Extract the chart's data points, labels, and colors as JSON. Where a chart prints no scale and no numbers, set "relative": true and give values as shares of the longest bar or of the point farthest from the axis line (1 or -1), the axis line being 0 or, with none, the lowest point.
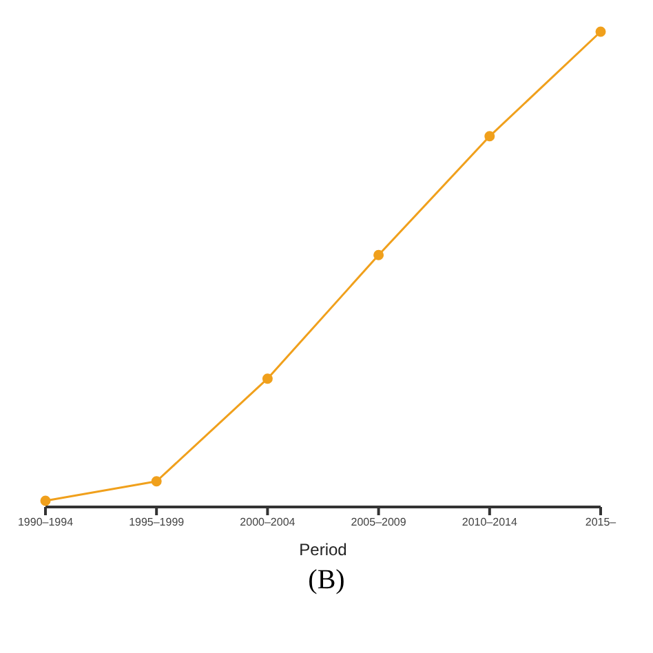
{
  "chart_data": {
    "type": "line",
    "relative": true,
    "xlabel": "Period",
    "annotations": [
      "(B)"
    ],
    "categories": [
      "1990–1994",
      "1995–1999",
      "2000–2004",
      "2005–2009",
      "2010–2014",
      "2015–"
    ],
    "series": [
      {
        "color": "#f0a01c",
        "values": [
          0.013,
          0.054,
          0.27,
          0.53,
          0.78,
          1
        ]
      }
    ],
    "marker": "circle",
    "line_style": "solid",
    "grid": false
  }
}
